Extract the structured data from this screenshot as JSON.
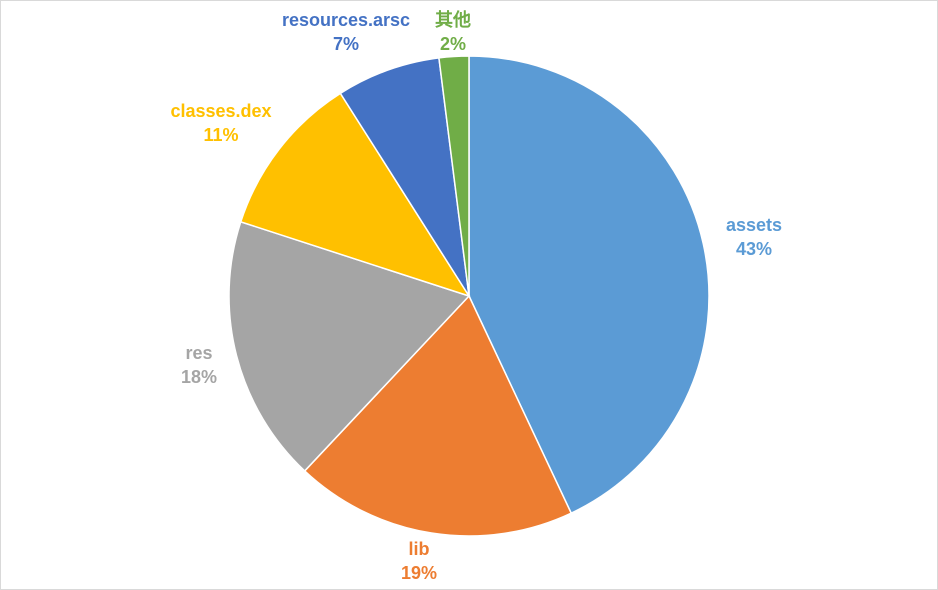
{
  "chart_data": {
    "type": "pie",
    "title": "",
    "slices": [
      {
        "label": "assets",
        "value": 43,
        "value_label": "43%",
        "color": "#5B9BD5"
      },
      {
        "label": "lib",
        "value": 19,
        "value_label": "19%",
        "color": "#ED7D31"
      },
      {
        "label": "res",
        "value": 18,
        "value_label": "18%",
        "color": "#A5A5A5"
      },
      {
        "label": "classes.dex",
        "value": 11,
        "value_label": "11%",
        "color": "#FFC000"
      },
      {
        "label": "resources.arsc",
        "value": 7,
        "value_label": "7%",
        "color": "#4472C4"
      },
      {
        "label": "其他",
        "value": 2,
        "value_label": "2%",
        "color": "#70AD47"
      }
    ],
    "start": "12 o'clock",
    "direction": "clockwise",
    "legend": "none",
    "data_labels": "outside, category name and percentage"
  }
}
